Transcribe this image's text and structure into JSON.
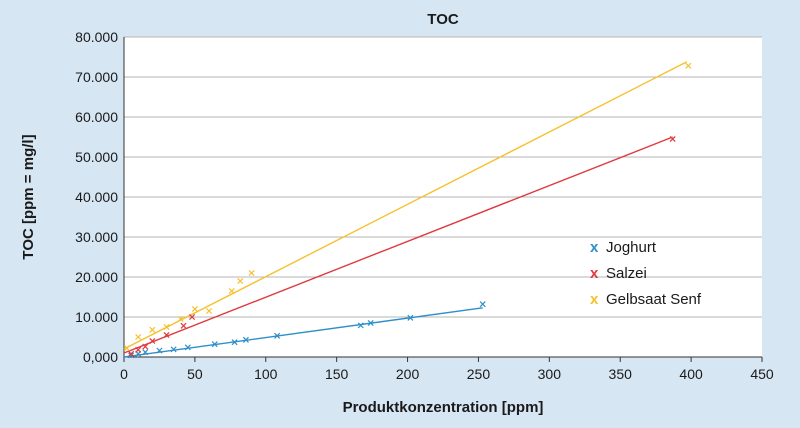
{
  "chart_data": {
    "type": "scatter",
    "title": "TOC",
    "xlabel": "Produktkonzentration [ppm]",
    "ylabel": "TOC [ppm = mg/l]",
    "xlim": [
      0,
      450
    ],
    "ylim": [
      0,
      80000
    ],
    "x_ticks": [
      "0",
      "50",
      "100",
      "150",
      "200",
      "250",
      "300",
      "350",
      "400",
      "450"
    ],
    "y_ticks": [
      "0,000",
      "10.000",
      "20.000",
      "30.000",
      "40.000",
      "50.000",
      "60.000",
      "70.000",
      "80.000"
    ],
    "grid": "horizontal",
    "legend_position": "right",
    "series": [
      {
        "name": "Joghurt",
        "color": "#2f8fc8",
        "marker": "x",
        "points": [
          [
            5,
            400
          ],
          [
            10,
            800
          ],
          [
            15,
            1200
          ],
          [
            25,
            1600
          ],
          [
            35,
            1900
          ],
          [
            45,
            2400
          ],
          [
            64,
            3200
          ],
          [
            78,
            3700
          ],
          [
            86,
            4300
          ],
          [
            108,
            5300
          ],
          [
            167,
            7900
          ],
          [
            174,
            8500
          ],
          [
            202,
            9800
          ],
          [
            253,
            13200
          ]
        ],
        "trendline": [
          [
            0,
            0
          ],
          [
            253,
            12300
          ]
        ]
      },
      {
        "name": "Salzei",
        "color": "#e03a3e",
        "marker": "x",
        "points": [
          [
            5,
            800
          ],
          [
            10,
            1800
          ],
          [
            15,
            2600
          ],
          [
            20,
            4000
          ],
          [
            30,
            5500
          ],
          [
            42,
            7800
          ],
          [
            48,
            10000
          ],
          [
            387,
            54500
          ]
        ],
        "trendline": [
          [
            0,
            1000
          ],
          [
            387,
            55000
          ]
        ]
      },
      {
        "name": "Gelbsaat Senf",
        "color": "#f7c02d",
        "marker": "x",
        "points": [
          [
            2,
            2200
          ],
          [
            10,
            5000
          ],
          [
            20,
            6800
          ],
          [
            30,
            7500
          ],
          [
            40,
            9500
          ],
          [
            50,
            12000
          ],
          [
            60,
            11500
          ],
          [
            76,
            16500
          ],
          [
            82,
            19000
          ],
          [
            90,
            21000
          ],
          [
            398,
            72800
          ]
        ],
        "trendline": [
          [
            0,
            2000
          ],
          [
            397,
            73800
          ]
        ]
      }
    ]
  }
}
